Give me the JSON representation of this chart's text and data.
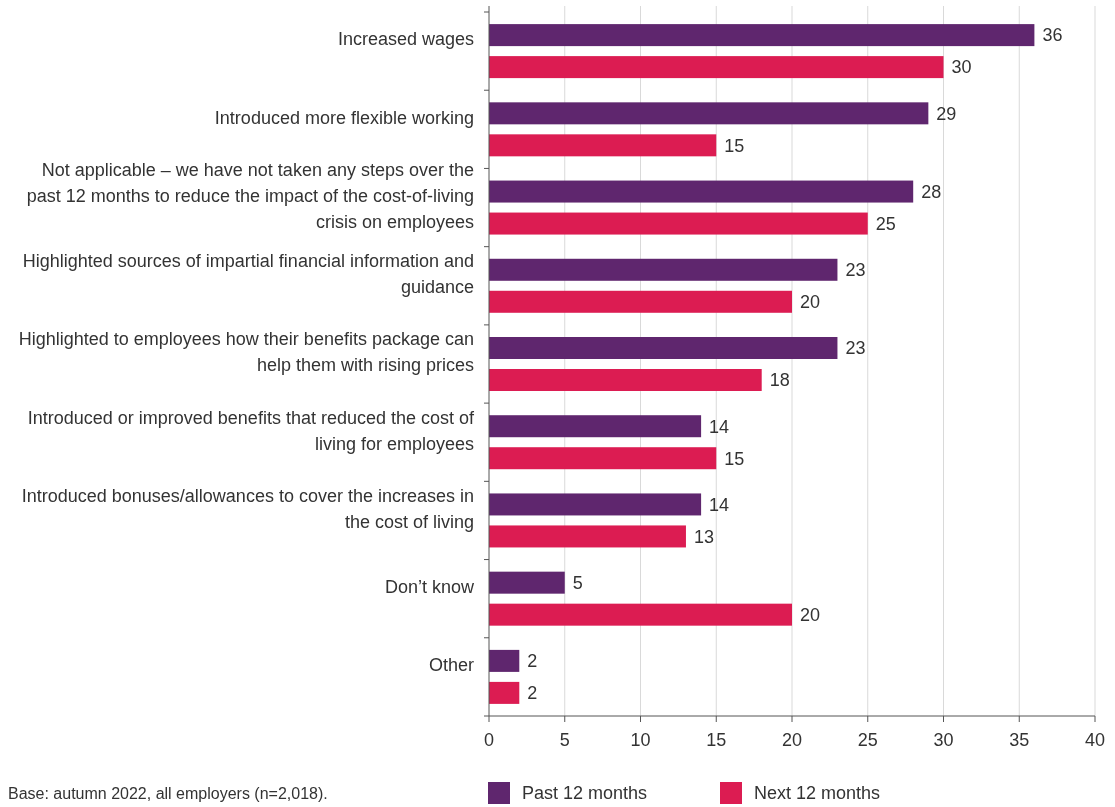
{
  "chart_data": {
    "type": "bar",
    "orientation": "horizontal",
    "categories": [
      "Increased wages",
      "Introduced more flexible working",
      "Not applicable – we have not taken any steps over the past 12 months to reduce the impact of the cost-of-living crisis on employees",
      "Highlighted sources of impartial financial information and guidance",
      "Highlighted to employees how their benefits package can help them with rising prices",
      "Introduced or improved benefits that reduced the cost of living for employees",
      "Introduced bonuses/allowances to cover the increases in the cost of living",
      "Don’t know",
      "Other"
    ],
    "series": [
      {
        "name": "Past 12 months",
        "color": "#5f266e",
        "values": [
          36,
          29,
          28,
          23,
          23,
          14,
          14,
          5,
          2
        ]
      },
      {
        "name": "Next 12 months",
        "color": "#dc1c52",
        "values": [
          30,
          15,
          25,
          20,
          18,
          15,
          13,
          20,
          2
        ]
      }
    ],
    "xlim": [
      0,
      40
    ],
    "xticks": [
      0,
      5,
      10,
      15,
      20,
      25,
      30,
      35,
      40
    ],
    "grid": "x",
    "legend": "bottom",
    "data_labels": true,
    "annotations": [
      "Base: autumn 2022, all employers (n=2,018)."
    ]
  }
}
